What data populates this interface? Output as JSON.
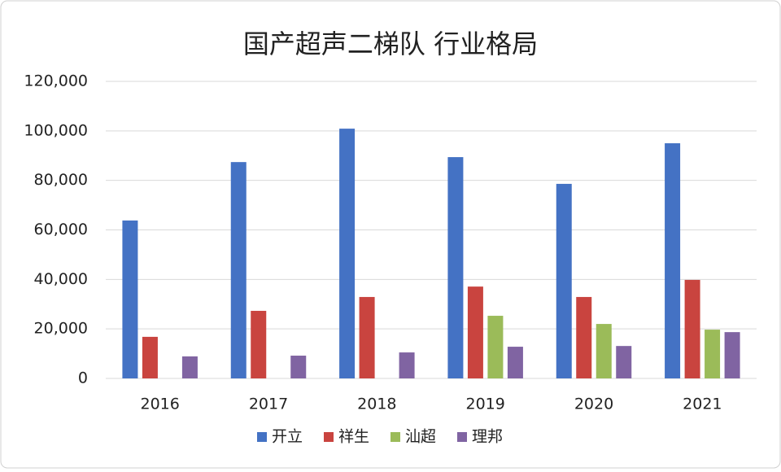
{
  "chart_data": {
    "type": "bar",
    "title": "国产超声二梯队 行业格局",
    "categories": [
      "2016",
      "2017",
      "2018",
      "2019",
      "2020",
      "2021"
    ],
    "series": [
      {
        "name": "开立",
        "color": "#4472c4",
        "values": [
          63800,
          87400,
          100900,
          89400,
          78600,
          95000
        ]
      },
      {
        "name": "祥生",
        "color": "#c9443f",
        "values": [
          16800,
          27300,
          32900,
          37100,
          32900,
          39800
        ]
      },
      {
        "name": "汕超",
        "color": "#9bbb59",
        "values": [
          null,
          null,
          null,
          25300,
          22000,
          19700
        ]
      },
      {
        "name": "理邦",
        "color": "#8064a2",
        "values": [
          8900,
          9200,
          10500,
          12800,
          13100,
          18700
        ]
      }
    ],
    "ylim": [
      0,
      120000
    ],
    "yticks": [
      0,
      {
        "value": 20000,
        "label": "20,000"
      },
      {
        "value": 40000,
        "label": "40,000"
      },
      {
        "value": 60000,
        "label": "60,000"
      },
      {
        "value": 80000,
        "label": "80,000"
      },
      {
        "value": 100000,
        "label": "100,000"
      },
      {
        "value": 120000,
        "label": "120,000"
      }
    ],
    "grid": true,
    "legend": "bottom"
  }
}
